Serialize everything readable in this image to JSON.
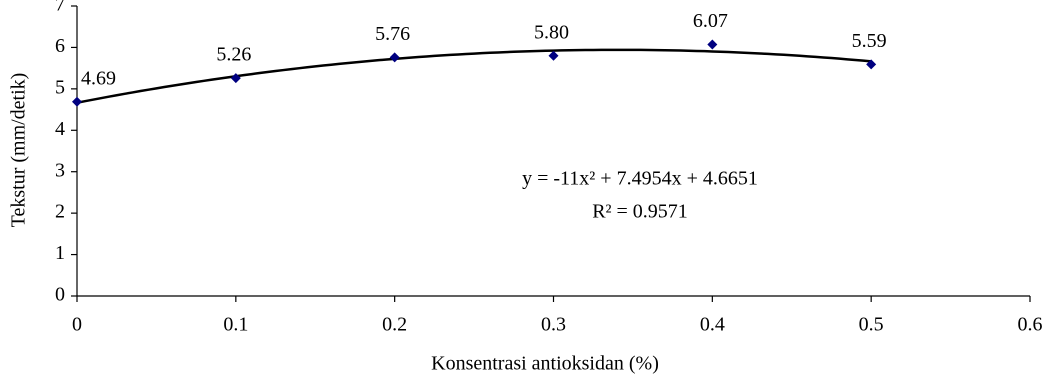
{
  "chart_data": {
    "type": "scatter",
    "x_label": "Konsentrasi antioksidan (%)",
    "y_label": "Tekstur (mm/detik)",
    "x": [
      0,
      0.1,
      0.2,
      0.3,
      0.4,
      0.5
    ],
    "values": [
      4.69,
      5.26,
      5.76,
      5.8,
      6.07,
      5.59
    ],
    "value_labels": [
      "4.69",
      "5.26",
      "5.76",
      "5.80",
      "6.07",
      "5.59"
    ],
    "color": "#000080",
    "trendline": {
      "coefficients": [
        -11,
        7.4954,
        4.6651
      ],
      "color": "#000000",
      "equation": "y = -11x² + 7.4954x + 4.6651",
      "r_squared": "R² = 0.9571"
    },
    "xlim": [
      0,
      0.6
    ],
    "xticks": [
      0,
      0.1,
      0.2,
      0.3,
      0.4,
      0.5,
      0.6
    ],
    "ylim": [
      0,
      7
    ],
    "yticks": [
      0,
      1,
      2,
      3,
      4,
      5,
      6,
      7
    ]
  }
}
